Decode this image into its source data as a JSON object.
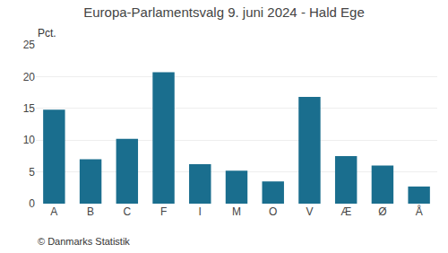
{
  "chart_data": {
    "type": "bar",
    "title": "Europa-Parlamentsvalg 9. juni 2024 - Hald Ege",
    "categories": [
      "A",
      "B",
      "C",
      "F",
      "I",
      "M",
      "O",
      "V",
      "Æ",
      "Ø",
      "Å"
    ],
    "values": [
      14.8,
      7.0,
      10.2,
      20.7,
      6.2,
      5.2,
      3.5,
      16.8,
      7.5,
      6.0,
      2.7
    ],
    "color": "#1a6e8e",
    "ylabel": "Pct.",
    "annotations": [
      "© Danmarks Statistik"
    ],
    "ylim": [
      0,
      25
    ],
    "yticks": [
      0,
      5,
      10,
      15,
      20,
      25
    ],
    "grid": true
  }
}
